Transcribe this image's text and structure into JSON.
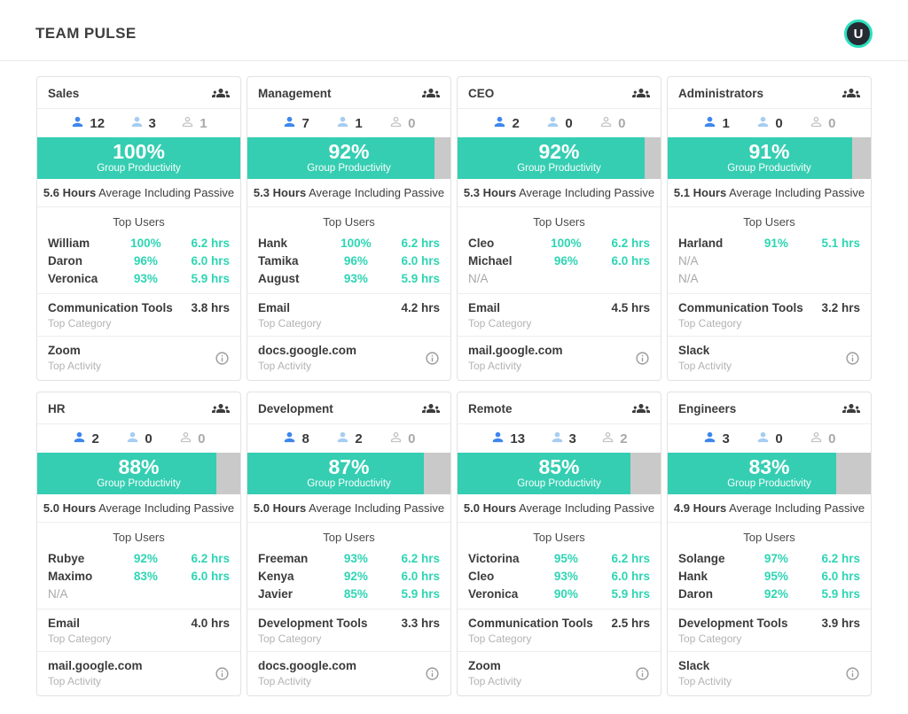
{
  "header": {
    "title": "TEAM PULSE",
    "avatar_initial": "U"
  },
  "labels": {
    "group_productivity": "Group Productivity",
    "hours_word": "Hours",
    "avg_suffix": "Average Including Passive",
    "top_users": "Top Users",
    "top_category": "Top Category",
    "top_activity": "Top Activity"
  },
  "colors": {
    "accent_teal": "#35ceb2",
    "teal_text": "#2ed5b4",
    "avatar_ring": "#2bdfbd",
    "active_blue": "#3e87ee",
    "idle_blue": "#a6cdf2",
    "offline_gray": "#c4c4c4",
    "bar_empty": "#c9c9c9"
  },
  "cards": [
    {
      "title": "Sales",
      "counts": {
        "active": "12",
        "idle": "3",
        "offline": "1"
      },
      "productivity_pct": 100,
      "avg_hours": "5.6",
      "users": [
        {
          "name": "William",
          "pct": "100%",
          "hrs": "6.2 hrs"
        },
        {
          "name": "Daron",
          "pct": "96%",
          "hrs": "6.0 hrs"
        },
        {
          "name": "Veronica",
          "pct": "93%",
          "hrs": "5.9 hrs"
        }
      ],
      "top_category": {
        "name": "Communication Tools",
        "hrs": "3.8 hrs"
      },
      "top_activity": "Zoom"
    },
    {
      "title": "Management",
      "counts": {
        "active": "7",
        "idle": "1",
        "offline": "0"
      },
      "productivity_pct": 92,
      "avg_hours": "5.3",
      "users": [
        {
          "name": "Hank",
          "pct": "100%",
          "hrs": "6.2 hrs"
        },
        {
          "name": "Tamika",
          "pct": "96%",
          "hrs": "6.0 hrs"
        },
        {
          "name": "August",
          "pct": "93%",
          "hrs": "5.9 hrs"
        }
      ],
      "top_category": {
        "name": "Email",
        "hrs": "4.2 hrs"
      },
      "top_activity": "docs.google.com"
    },
    {
      "title": "CEO",
      "counts": {
        "active": "2",
        "idle": "0",
        "offline": "0"
      },
      "productivity_pct": 92,
      "avg_hours": "5.3",
      "users": [
        {
          "name": "Cleo",
          "pct": "100%",
          "hrs": "6.2 hrs"
        },
        {
          "name": "Michael",
          "pct": "96%",
          "hrs": "6.0 hrs"
        },
        {
          "name": "N/A",
          "pct": "",
          "hrs": ""
        }
      ],
      "top_category": {
        "name": "Email",
        "hrs": "4.5 hrs"
      },
      "top_activity": "mail.google.com"
    },
    {
      "title": "Administrators",
      "counts": {
        "active": "1",
        "idle": "0",
        "offline": "0"
      },
      "productivity_pct": 91,
      "avg_hours": "5.1",
      "users": [
        {
          "name": "Harland",
          "pct": "91%",
          "hrs": "5.1 hrs"
        },
        {
          "name": "N/A",
          "pct": "",
          "hrs": ""
        },
        {
          "name": "N/A",
          "pct": "",
          "hrs": ""
        }
      ],
      "top_category": {
        "name": "Communication Tools",
        "hrs": "3.2 hrs"
      },
      "top_activity": "Slack"
    },
    {
      "title": "HR",
      "counts": {
        "active": "2",
        "idle": "0",
        "offline": "0"
      },
      "productivity_pct": 88,
      "avg_hours": "5.0",
      "users": [
        {
          "name": "Rubye",
          "pct": "92%",
          "hrs": "6.2 hrs"
        },
        {
          "name": "Maximo",
          "pct": "83%",
          "hrs": "6.0 hrs"
        },
        {
          "name": "N/A",
          "pct": "",
          "hrs": ""
        }
      ],
      "top_category": {
        "name": "Email",
        "hrs": "4.0 hrs"
      },
      "top_activity": "mail.google.com"
    },
    {
      "title": "Development",
      "counts": {
        "active": "8",
        "idle": "2",
        "offline": "0"
      },
      "productivity_pct": 87,
      "avg_hours": "5.0",
      "users": [
        {
          "name": "Freeman",
          "pct": "93%",
          "hrs": "6.2 hrs"
        },
        {
          "name": "Kenya",
          "pct": "92%",
          "hrs": "6.0 hrs"
        },
        {
          "name": "Javier",
          "pct": "85%",
          "hrs": "5.9 hrs"
        }
      ],
      "top_category": {
        "name": "Development Tools",
        "hrs": "3.3 hrs"
      },
      "top_activity": "docs.google.com"
    },
    {
      "title": "Remote",
      "counts": {
        "active": "13",
        "idle": "3",
        "offline": "2"
      },
      "productivity_pct": 85,
      "avg_hours": "5.0",
      "users": [
        {
          "name": "Victorina",
          "pct": "95%",
          "hrs": "6.2 hrs"
        },
        {
          "name": "Cleo",
          "pct": "93%",
          "hrs": "6.0 hrs"
        },
        {
          "name": "Veronica",
          "pct": "90%",
          "hrs": "5.9 hrs"
        }
      ],
      "top_category": {
        "name": "Communication Tools",
        "hrs": "2.5 hrs"
      },
      "top_activity": "Zoom"
    },
    {
      "title": "Engineers",
      "counts": {
        "active": "3",
        "idle": "0",
        "offline": "0"
      },
      "productivity_pct": 83,
      "avg_hours": "4.9",
      "users": [
        {
          "name": "Solange",
          "pct": "97%",
          "hrs": "6.2 hrs"
        },
        {
          "name": "Hank",
          "pct": "95%",
          "hrs": "6.0 hrs"
        },
        {
          "name": "Daron",
          "pct": "92%",
          "hrs": "5.9 hrs"
        }
      ],
      "top_category": {
        "name": "Development Tools",
        "hrs": "3.9 hrs"
      },
      "top_activity": "Slack"
    }
  ]
}
